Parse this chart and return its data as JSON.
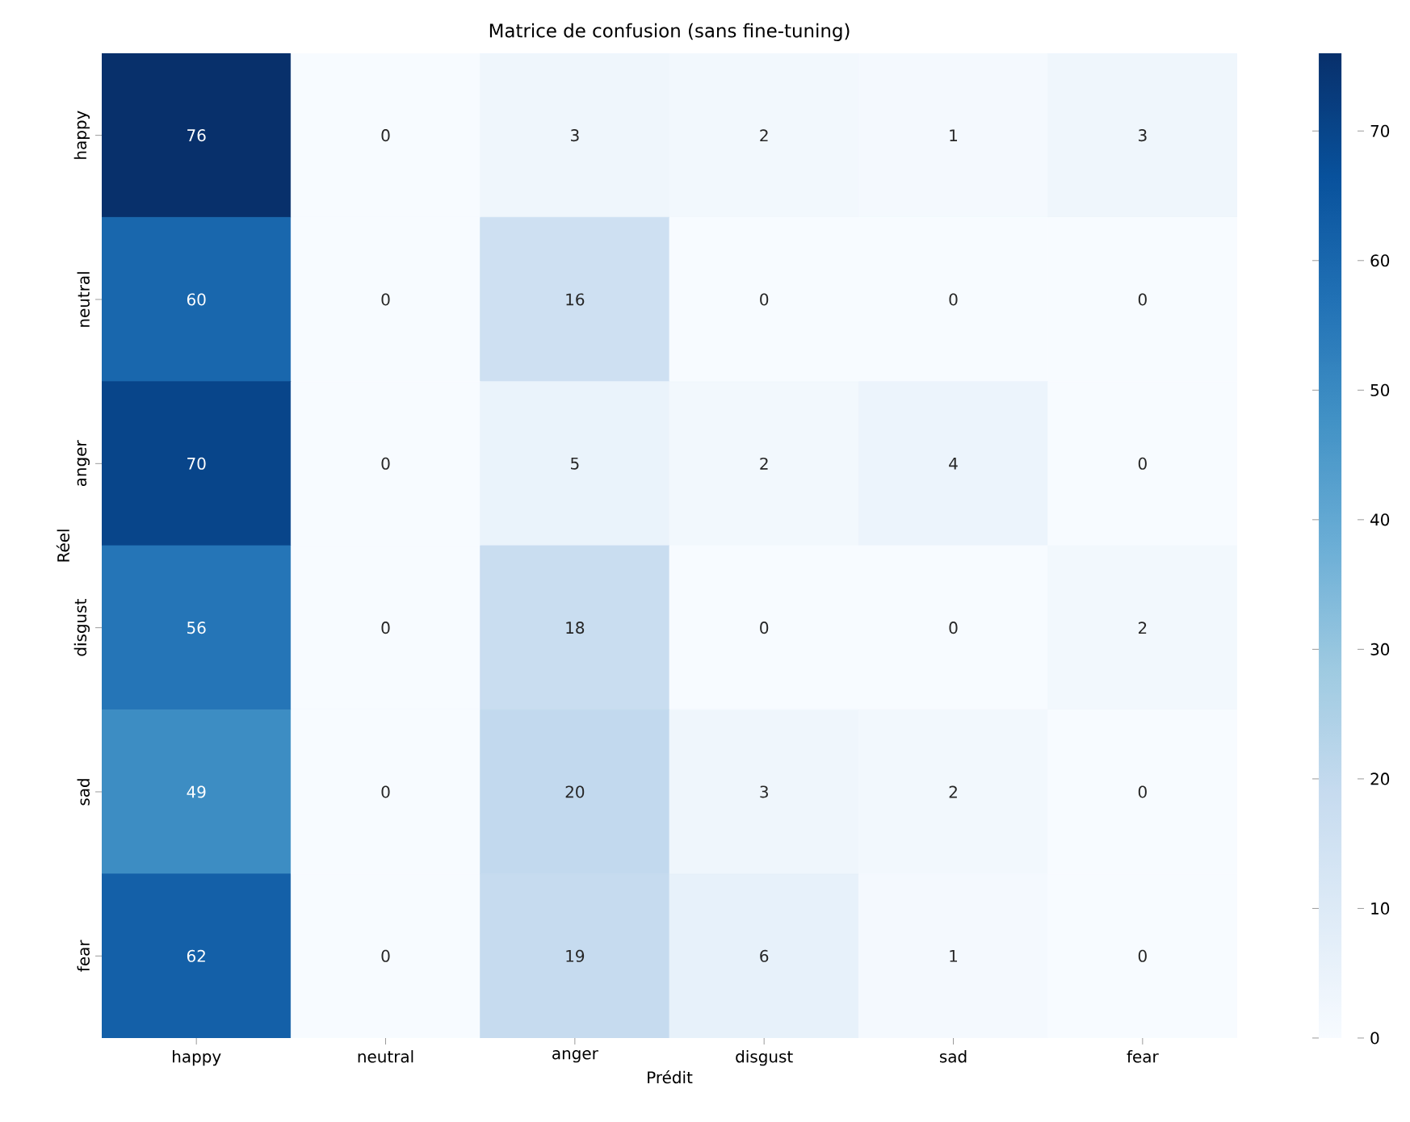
{
  "chart_data": {
    "type": "heatmap",
    "title": "Matrice de confusion (sans fine-tuning)",
    "xlabel": "Prédit",
    "ylabel": "Réel",
    "categories": [
      "happy",
      "neutral",
      "anger",
      "disgust",
      "sad",
      "fear"
    ],
    "y_categories": [
      "happy",
      "neutral",
      "anger",
      "disgust",
      "sad",
      "fear"
    ],
    "cells": [
      [
        76,
        0,
        3,
        2,
        1,
        3
      ],
      [
        60,
        0,
        16,
        0,
        0,
        0
      ],
      [
        70,
        0,
        5,
        2,
        4,
        0
      ],
      [
        56,
        0,
        18,
        0,
        0,
        2
      ],
      [
        49,
        0,
        20,
        3,
        2,
        0
      ],
      [
        62,
        0,
        19,
        6,
        1,
        0
      ]
    ],
    "clim": [
      0,
      76
    ],
    "cticks": [
      0,
      10,
      20,
      30,
      40,
      50,
      60,
      70
    ],
    "data_labels": true
  }
}
